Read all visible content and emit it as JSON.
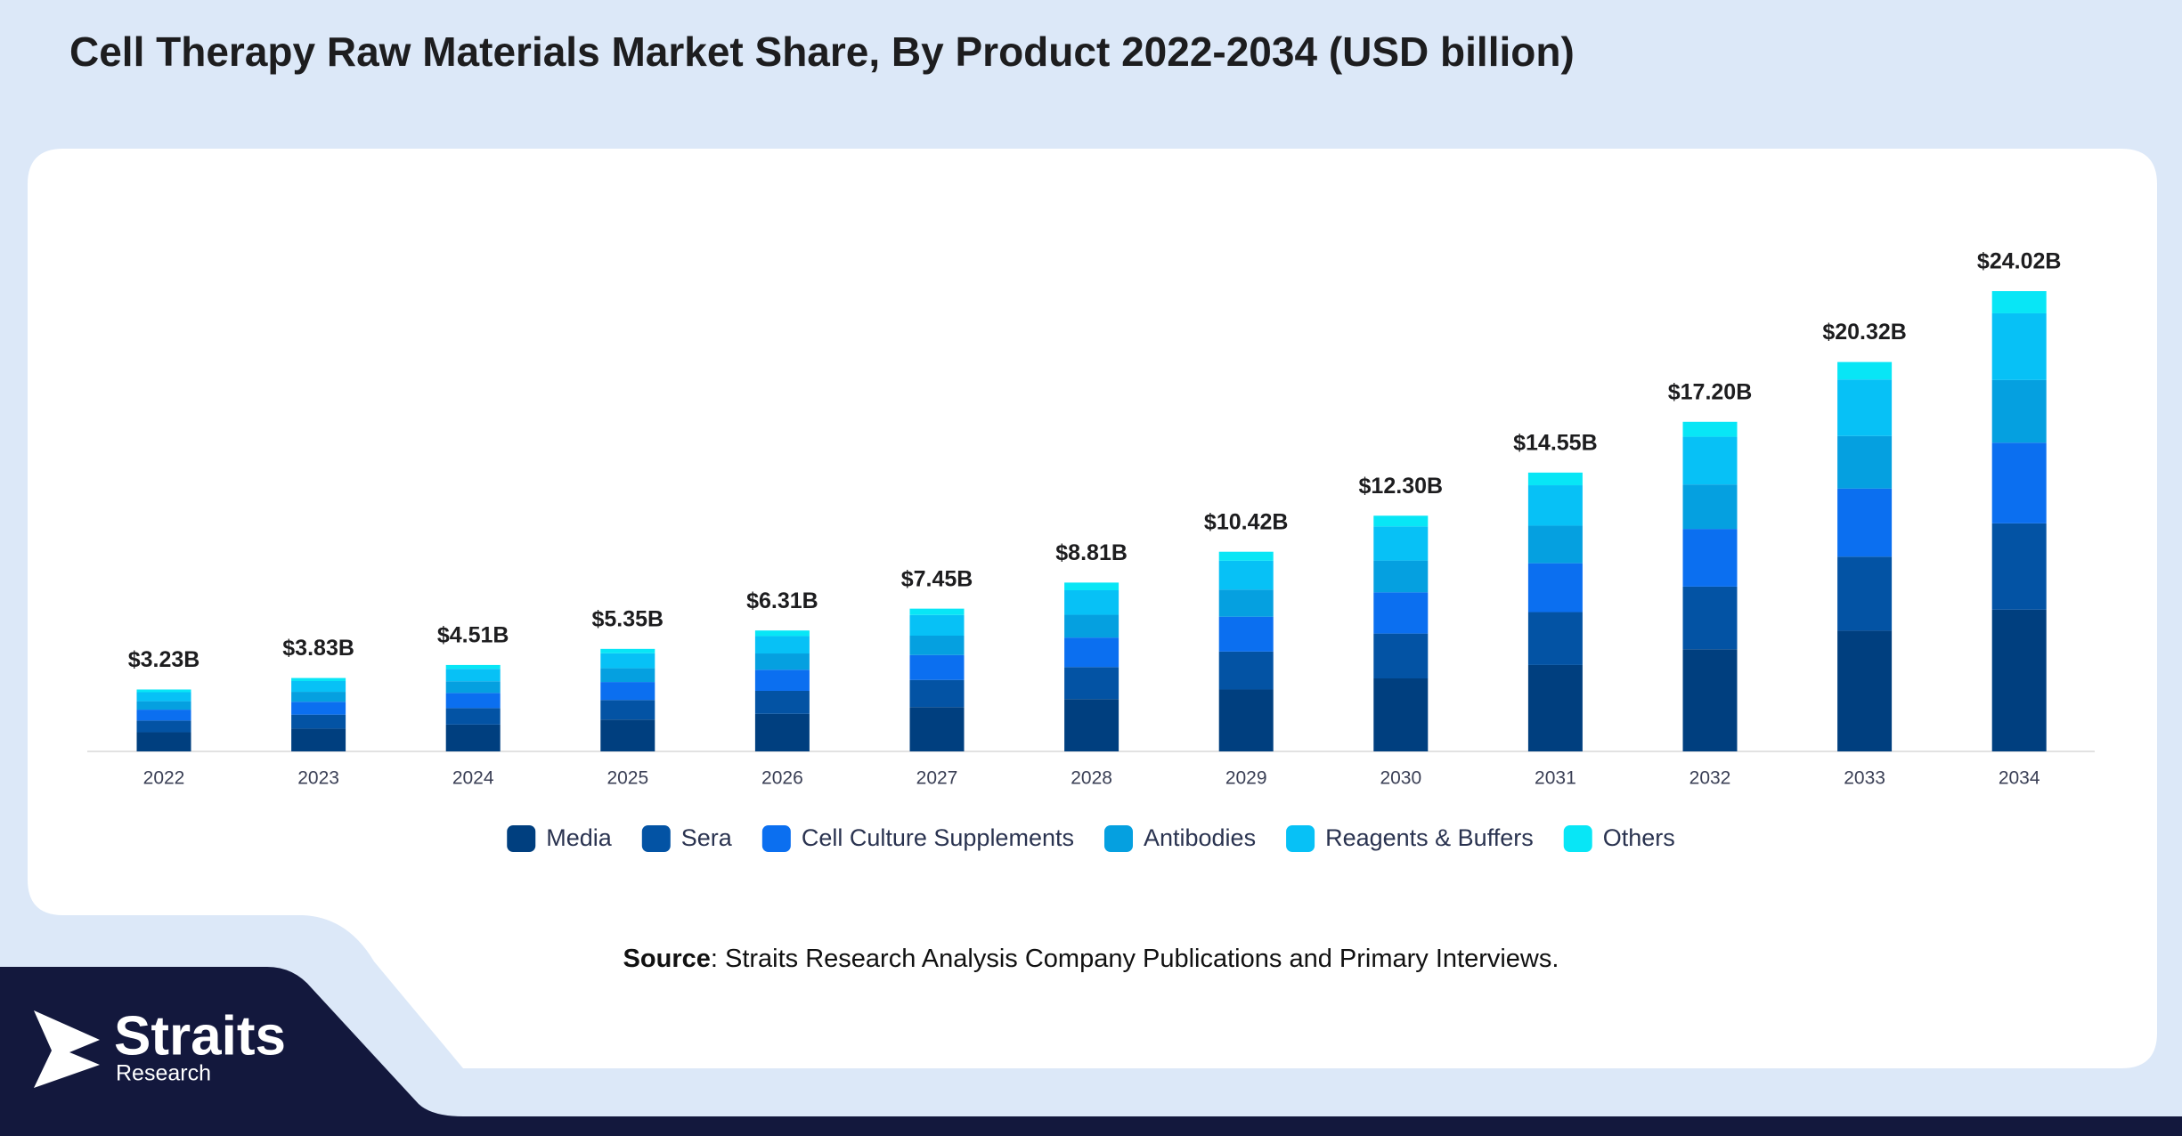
{
  "chart_data": {
    "type": "stacked_bar",
    "title": "Cell Therapy Raw Materials Market Share, By Product 2022-2034 (USD billion)",
    "categories": [
      "2022",
      "2023",
      "2024",
      "2025",
      "2026",
      "2027",
      "2028",
      "2029",
      "2030",
      "2031",
      "2032",
      "2033",
      "2034"
    ],
    "series": [
      {
        "name": "Media",
        "color": "#003f7f",
        "values": [
          1.0,
          1.19,
          1.4,
          1.66,
          1.96,
          2.31,
          2.73,
          3.23,
          3.81,
          4.51,
          5.33,
          6.3,
          7.4
        ]
      },
      {
        "name": "Sera",
        "color": "#0353a4",
        "values": [
          0.61,
          0.73,
          0.86,
          1.02,
          1.2,
          1.42,
          1.67,
          1.98,
          2.34,
          2.76,
          3.27,
          3.86,
          4.5
        ]
      },
      {
        "name": "Cell Culture Supplements",
        "color": "#0b6ff0",
        "values": [
          0.57,
          0.67,
          0.79,
          0.94,
          1.1,
          1.3,
          1.54,
          1.82,
          2.15,
          2.55,
          3.01,
          3.56,
          4.21
        ]
      },
      {
        "name": "Antibodies",
        "color": "#05a0e0",
        "values": [
          0.44,
          0.52,
          0.61,
          0.72,
          0.85,
          1.01,
          1.19,
          1.41,
          1.66,
          1.96,
          2.32,
          2.74,
          3.27
        ]
      },
      {
        "name": "Reagents & Buffers",
        "color": "#07c1f6",
        "values": [
          0.47,
          0.56,
          0.65,
          0.78,
          0.91,
          1.08,
          1.28,
          1.51,
          1.78,
          2.11,
          2.49,
          2.95,
          3.48
        ]
      },
      {
        "name": "Others",
        "color": "#08e6f6",
        "values": [
          0.14,
          0.16,
          0.2,
          0.23,
          0.29,
          0.33,
          0.4,
          0.47,
          0.56,
          0.66,
          0.78,
          0.91,
          1.16
        ]
      }
    ],
    "totals": {
      "values": [
        3.23,
        3.83,
        4.51,
        5.35,
        6.31,
        7.45,
        8.81,
        10.42,
        12.3,
        14.55,
        17.2,
        20.32,
        24.02
      ],
      "value_labels": [
        "$3.23B",
        "$3.83B",
        "$4.51B",
        "$5.35B",
        "$6.31B",
        "$7.45B",
        "$8.81B",
        "$10.42B",
        "$12.30B",
        "$14.55B",
        "$17.20B",
        "$20.32B",
        "$24.02B"
      ]
    },
    "legend": "bottom"
  },
  "source": {
    "label": "Source",
    "text": ": Straits Research Analysis Company Publications and Primary Interviews."
  },
  "logo": {
    "name": "Straits",
    "sub": "Research"
  }
}
